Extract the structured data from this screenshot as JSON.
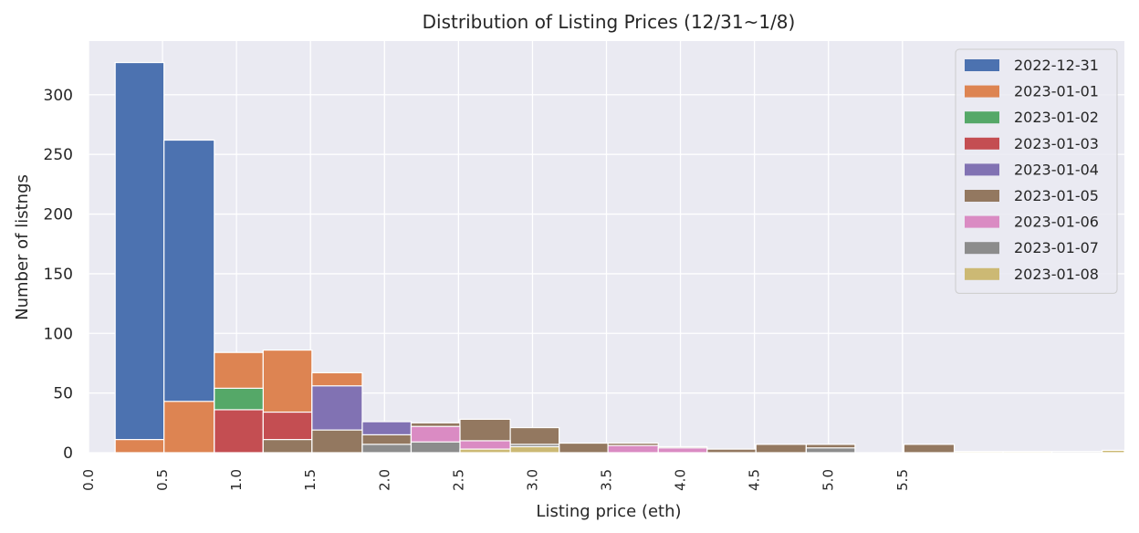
{
  "chart_data": {
    "type": "bar",
    "title": "Distribution of Listing Prices (12/31~1/8)",
    "xlabel": "Listing price (eth)",
    "ylabel": "Number of listngs",
    "xlim": [
      0.0,
      7.0
    ],
    "ylim": [
      0,
      345
    ],
    "x_ticks": [
      "0.0",
      "0.5",
      "1.0",
      "1.5",
      "2.0",
      "2.5",
      "3.0",
      "3.5",
      "4.0",
      "4.5",
      "5.0",
      "5.5"
    ],
    "y_ticks": [
      "0",
      "50",
      "100",
      "150",
      "200",
      "250",
      "300"
    ],
    "legend_position": "top-right",
    "series": [
      {
        "name": "2022-12-31",
        "color": "#4c72b0",
        "bins": [
          {
            "x0": 0.18,
            "x1": 0.51,
            "value": 327
          },
          {
            "x0": 0.51,
            "x1": 0.85,
            "value": 262
          }
        ]
      },
      {
        "name": "2023-01-01",
        "color": "#dd8452",
        "bins": [
          {
            "x0": 0.18,
            "x1": 0.51,
            "value": 11
          },
          {
            "x0": 0.51,
            "x1": 0.85,
            "value": 43
          },
          {
            "x0": 0.85,
            "x1": 1.18,
            "value": 84
          },
          {
            "x0": 1.18,
            "x1": 1.51,
            "value": 86
          },
          {
            "x0": 1.51,
            "x1": 1.85,
            "value": 67
          }
        ]
      },
      {
        "name": "2023-01-02",
        "color": "#55a868",
        "bins": [
          {
            "x0": 0.85,
            "x1": 1.18,
            "value": 54
          }
        ]
      },
      {
        "name": "2023-01-03",
        "color": "#c44e52",
        "bins": [
          {
            "x0": 0.85,
            "x1": 1.18,
            "value": 36
          },
          {
            "x0": 1.18,
            "x1": 1.51,
            "value": 34
          }
        ]
      },
      {
        "name": "2023-01-04",
        "color": "#8172b3",
        "bins": [
          {
            "x0": 1.51,
            "x1": 1.85,
            "value": 56
          },
          {
            "x0": 1.85,
            "x1": 2.18,
            "value": 26
          }
        ]
      },
      {
        "name": "2023-01-05",
        "color": "#937860",
        "bins": [
          {
            "x0": 1.18,
            "x1": 1.51,
            "value": 11
          },
          {
            "x0": 1.51,
            "x1": 1.85,
            "value": 19
          },
          {
            "x0": 1.85,
            "x1": 2.18,
            "value": 15
          },
          {
            "x0": 2.18,
            "x1": 2.51,
            "value": 25
          },
          {
            "x0": 2.51,
            "x1": 2.85,
            "value": 28
          },
          {
            "x0": 2.85,
            "x1": 3.18,
            "value": 21
          },
          {
            "x0": 3.18,
            "x1": 3.51,
            "value": 8
          },
          {
            "x0": 3.51,
            "x1": 3.85,
            "value": 8
          },
          {
            "x0": 3.85,
            "x1": 4.18,
            "value": 5
          },
          {
            "x0": 4.18,
            "x1": 4.51,
            "value": 3
          },
          {
            "x0": 4.51,
            "x1": 4.85,
            "value": 7
          },
          {
            "x0": 4.85,
            "x1": 5.18,
            "value": 7
          },
          {
            "x0": 5.51,
            "x1": 5.85,
            "value": 7
          }
        ]
      },
      {
        "name": "2023-01-06",
        "color": "#da8bc3",
        "bins": [
          {
            "x0": 2.18,
            "x1": 2.51,
            "value": 22
          },
          {
            "x0": 2.51,
            "x1": 2.85,
            "value": 10
          },
          {
            "x0": 3.51,
            "x1": 3.85,
            "value": 6
          },
          {
            "x0": 3.85,
            "x1": 4.18,
            "value": 4
          }
        ]
      },
      {
        "name": "2023-01-07",
        "color": "#8c8c8c",
        "bins": [
          {
            "x0": 1.85,
            "x1": 2.18,
            "value": 7
          },
          {
            "x0": 2.18,
            "x1": 2.51,
            "value": 9
          },
          {
            "x0": 2.85,
            "x1": 3.18,
            "value": 7
          },
          {
            "x0": 4.85,
            "x1": 5.18,
            "value": 4
          },
          {
            "x0": 6.51,
            "x1": 6.85,
            "value": 1
          }
        ]
      },
      {
        "name": "2023-01-08",
        "color": "#ccb974",
        "bins": [
          {
            "x0": 2.51,
            "x1": 2.85,
            "value": 3
          },
          {
            "x0": 2.85,
            "x1": 3.18,
            "value": 5
          },
          {
            "x0": 5.85,
            "x1": 6.18,
            "value": 1
          },
          {
            "x0": 6.18,
            "x1": 6.51,
            "value": 1
          },
          {
            "x0": 6.85,
            "x1": 7.0,
            "value": 2
          }
        ]
      }
    ]
  },
  "colors": {
    "plot_background": "#eaeaf2",
    "grid": "#ffffff",
    "text": "#262626"
  }
}
